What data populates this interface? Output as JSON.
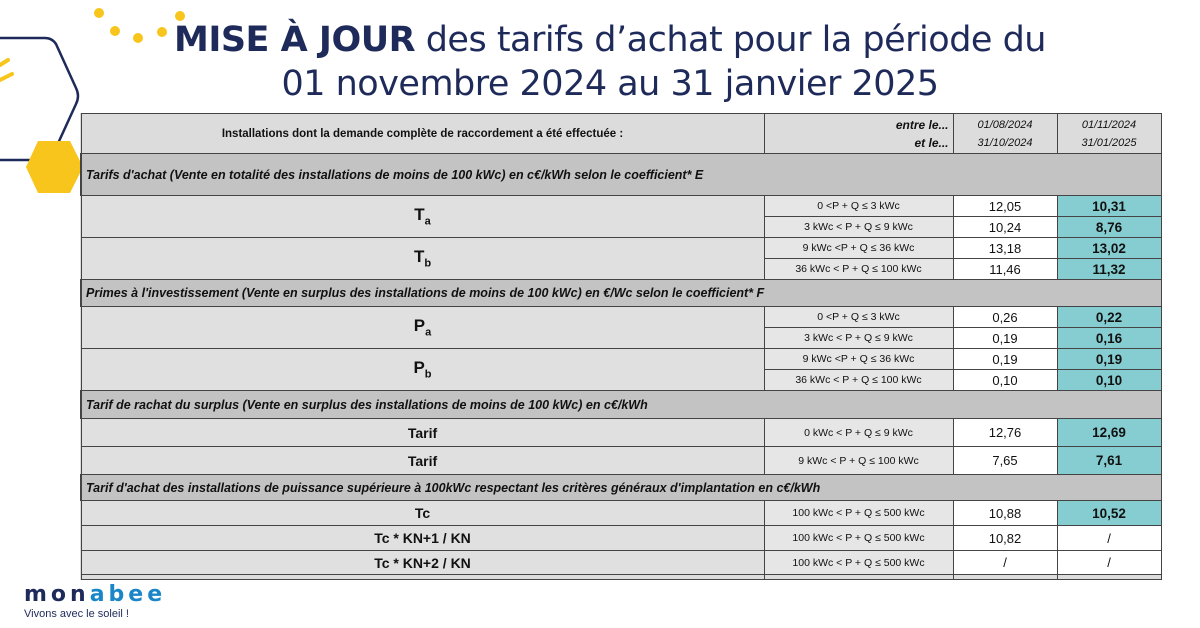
{
  "title": {
    "bold": "MISE À JOUR",
    "rest": " des tarifs d’achat pour la période du",
    "line2": "01 novembre 2024 au 31 janvier 2025"
  },
  "header": {
    "label": "Installations dont la demande complète de raccordement a été effectuée :",
    "entre": "entre le...",
    "et": "et le...",
    "p1_start": "01/08/2024",
    "p1_end": "31/10/2024",
    "p2_start": "01/11/2024",
    "p2_end": "31/01/2025"
  },
  "sections": [
    "Tarifs d'achat (Vente en totalité des installations de moins de 100 kWc) en c€/kWh selon le coefficient* E",
    "Primes à l'investissement (Vente en surplus des installations de moins de 100 kWc) en €/Wc  selon le coefficient* F",
    "Tarif de rachat du surplus (Vente en surplus des installations de moins de 100 kWc) en c€/kWh",
    "Tarif d'achat des installations de puissance supérieure à 100kWc respectant les critères généraux d'implantation en c€/kWh"
  ],
  "labels": {
    "ta": "T",
    "ta_sub": "a",
    "tb": "T",
    "tb_sub": "b",
    "pa": "P",
    "pa_sub": "a",
    "pb": "P",
    "pb_sub": "b",
    "tarif1": "Tarif",
    "tarif2": "Tarif",
    "tc1": "Tc",
    "tc2": "Tc * KN+1 / KN",
    "tc3": "Tc * KN+2 / KN"
  },
  "rows": [
    {
      "range": "0 <P + Q ≤ 3 kWc",
      "old": "12,05",
      "new": "10,31"
    },
    {
      "range": "3  kWc < P + Q ≤ 9 kWc",
      "old": "10,24",
      "new": "8,76"
    },
    {
      "range": "9 kWc <P + Q ≤ 36 kWc",
      "old": "13,18",
      "new": "13,02"
    },
    {
      "range": "36 kWc < P + Q ≤ 100 kWc",
      "old": "11,46",
      "new": "11,32"
    },
    {
      "range": "0 <P + Q ≤ 3 kWc",
      "old": "0,26",
      "new": "0,22"
    },
    {
      "range": "3  kWc < P + Q ≤ 9 kWc",
      "old": "0,19",
      "new": "0,16"
    },
    {
      "range": "9 kWc <P + Q ≤ 36 kWc",
      "old": "0,19",
      "new": "0,19"
    },
    {
      "range": "36 kWc < P + Q ≤ 100 kWc",
      "old": "0,10",
      "new": "0,10"
    },
    {
      "range": "0 kWc < P + Q ≤ 9 kWc",
      "old": "12,76",
      "new": "12,69"
    },
    {
      "range": "9 kWc < P + Q ≤ 100 kWc",
      "old": "7,65",
      "new": "7,61"
    },
    {
      "range": "100 kWc < P + Q ≤ 500 kWc",
      "old": "10,88",
      "new": "10,52"
    },
    {
      "range": "100 kWc < P + Q ≤ 500 kWc",
      "old": "10,82",
      "new": "/"
    },
    {
      "range": "100 kWc < P + Q ≤ 500 kWc",
      "old": "/",
      "new": "/"
    }
  ],
  "logo": {
    "brand_a": "mon",
    "brand_b": "abee",
    "tagline": "Vivons avec le soleil !"
  },
  "colors": {
    "navy": "#1e2a5a",
    "yellow": "#f7c51c",
    "teal": "#86cdd1",
    "blue": "#1a86c8"
  }
}
